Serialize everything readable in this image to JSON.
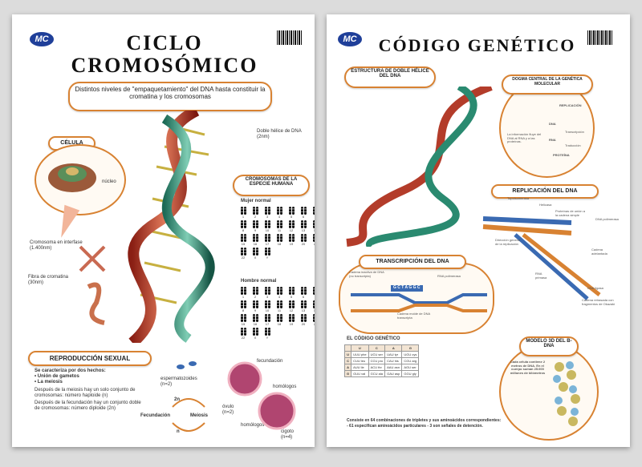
{
  "left": {
    "title_line1": "CICLO",
    "title_line2": "CROMOSÓMICO",
    "logo": "MC",
    "subtitle_box": "Distintos niveles de \"empaquetamiento\" del DNA hasta constituir la cromatina y los cromosomas",
    "celula": {
      "title": "CÉLULA",
      "nucleo": "núcleo"
    },
    "doble_helice": {
      "label": "Doble hélice de DNA",
      "size": "(2nm)"
    },
    "cromosomas": {
      "title": "CROMOSOMAS DE LA ESPECIE HUMANA",
      "mujer": "Mujer normal",
      "hombre": "Hombre normal"
    },
    "karyotype_numbers": [
      "1",
      "2",
      "3",
      "4",
      "5",
      "6",
      "7",
      "8",
      "9",
      "10",
      "11",
      "12",
      "13",
      "14",
      "15",
      "16",
      "17",
      "18",
      "19",
      "20",
      "21",
      "22",
      "X",
      "Y"
    ],
    "interfase": {
      "label": "Cromosoma en interfase",
      "size": "(1.400nm)"
    },
    "fibra": {
      "label": "Fibra de cromatina",
      "size": "(30nm)"
    },
    "reproduccion": {
      "title": "REPRODUCCIÓN SEXUAL",
      "caracteriza": "Se caracteriza por dos hechos:",
      "bullet1": "Unión de gametos",
      "bullet2": "La meiosis",
      "meiosis_text": "Después de la meiosis hay un solo conjunto de cromosomas: número haploide (n)",
      "fecundacion_text": "Después de la fecundación hay un conjunto doble de cromosomas: número diploide (2n)"
    },
    "cycle": {
      "espermatozoides": "espermatozoides",
      "esp_n": "(n=2)",
      "fecundacion_top": "fecundación",
      "homologos1": "homólogos",
      "ovulo": "óvulo",
      "ovulo_n": "(n=2)",
      "homologos2": "homólogos",
      "cigoto": "cigoto",
      "cigoto_n": "(n=4)",
      "n2": "2n",
      "fecundacion": "Fecundación",
      "meiosis": "Meiosis",
      "n": "n"
    }
  },
  "right": {
    "title": "CÓDIGO GENÉTICO",
    "logo": "MC",
    "estructura": "ESTRUCTURA DE DOBLE HÉLICE DEL DNA",
    "dogma": {
      "title": "DOGMA CENTRAL DE LA GENÉTICA MOLECULAR",
      "replicacion": "REPLICACIÓN",
      "dna": "DNA",
      "transcripcion": "Transcripción",
      "rna": "RNA",
      "traduccion": "Traducción",
      "proteina": "PROTEÍNA",
      "info": "La información fluye del DNA al RNA y a las proteínas."
    },
    "replicacion_dna": {
      "title": "REPLICACIÓN DEL DNA",
      "topo": "Topoisomerasa",
      "helicasa": "Helicasa",
      "proteinas": "Proteínas de unión a la cadena simple",
      "polimerasa": "DNA polimerasa",
      "direccion": "Dirección general de la replicación",
      "cadena_adelantada": "Cadena adelantada",
      "primasa": "RNA primasa",
      "ligasa": "DNA ligasa",
      "retrasada": "Cadena retrasada con fragmentos de Okazaki"
    },
    "transcripcion": {
      "title": "TRANSCRIPCIÓN DEL DNA",
      "cadena_inactiva": "Cadena inactiva de DNA (no transcripta)",
      "seq": "G C T A G G C",
      "rna_pol": "RNA polimerasa",
      "cadena_molde": "Cadena molde de DNA transcripta",
      "rna": "RNA"
    },
    "codigo": {
      "title": "EL CÓDIGO GENÉTICO",
      "headers": [
        "U",
        "C",
        "A",
        "G"
      ],
      "rows": [
        [
          "U",
          "UUU phe",
          "UCU ser",
          "UAU tyr",
          "UGU cys"
        ],
        [
          "C",
          "CUU leu",
          "CCU pro",
          "CAU his",
          "CGU arg"
        ],
        [
          "A",
          "AUU ile",
          "ACU thr",
          "AAU asn",
          "AGU ser"
        ],
        [
          "G",
          "GUU val",
          "GCU ala",
          "GAU asp",
          "GGU gly"
        ]
      ],
      "footer1": "Consiste en 64 combinaciones de tripletes y sus aminoácidos correspondientes:",
      "footer2": "- 61 especifican aminoácidos particulares - 3 son señales de detención."
    },
    "modelo": {
      "title": "MODELO 3D DEL B-DNA",
      "text": "Cada célula contiene 2 metros de DNA. En el cuerpo suman 25.000 millones de kilómetros"
    }
  },
  "colors": {
    "accent": "#d88232",
    "blue": "#3a6ab2",
    "logo": "#1f3f99"
  }
}
